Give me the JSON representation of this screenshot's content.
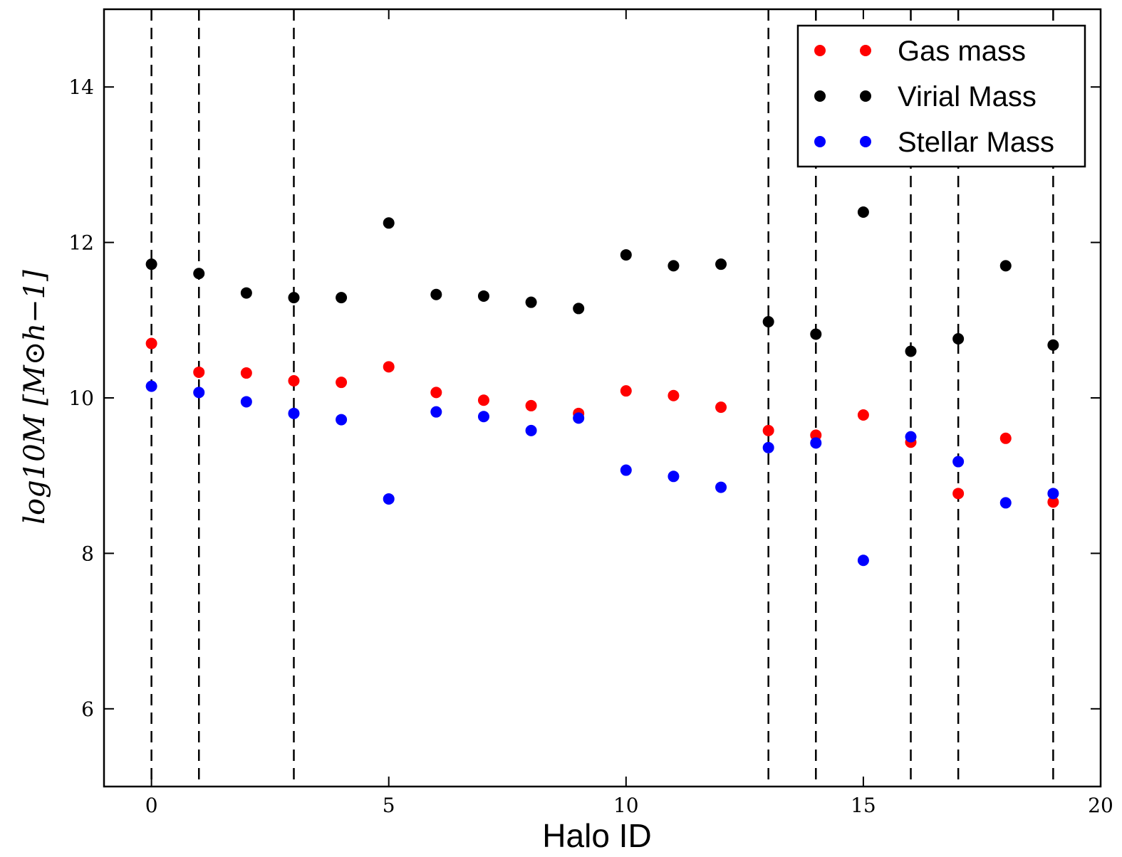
{
  "chart_data": {
    "type": "scatter",
    "title": "",
    "xlabel": "Halo ID",
    "ylabel": "log10M [M⊙h−1]",
    "xlim": [
      -1,
      20
    ],
    "ylim": [
      5,
      15
    ],
    "xticks": [
      0,
      5,
      10,
      15,
      20
    ],
    "yticks": [
      6,
      8,
      10,
      12,
      14
    ],
    "legend_position": "top-right",
    "vlines": [
      0,
      1,
      3,
      13,
      14,
      16,
      17,
      19
    ],
    "series": [
      {
        "name": "Gas mass",
        "color": "#ff0000",
        "x": [
          0,
          1,
          2,
          3,
          4,
          5,
          6,
          7,
          8,
          9,
          10,
          11,
          12,
          13,
          14,
          15,
          16,
          17,
          18,
          19
        ],
        "y": [
          10.7,
          10.33,
          10.32,
          10.22,
          10.2,
          10.4,
          10.07,
          9.97,
          9.9,
          9.8,
          10.09,
          10.03,
          9.88,
          9.58,
          9.52,
          9.78,
          9.43,
          8.77,
          9.48,
          8.66
        ]
      },
      {
        "name": "Virial Mass",
        "color": "#000000",
        "x": [
          0,
          1,
          2,
          3,
          4,
          5,
          6,
          7,
          8,
          9,
          10,
          11,
          12,
          13,
          14,
          15,
          16,
          17,
          18,
          19
        ],
        "y": [
          11.72,
          11.6,
          11.35,
          11.29,
          11.29,
          12.25,
          11.33,
          11.31,
          11.23,
          11.15,
          11.84,
          11.7,
          11.72,
          10.98,
          10.82,
          12.39,
          10.6,
          10.76,
          11.7,
          10.68
        ]
      },
      {
        "name": "Stellar Mass",
        "color": "#0000ff",
        "x": [
          0,
          1,
          2,
          3,
          4,
          5,
          6,
          7,
          8,
          9,
          10,
          11,
          12,
          13,
          14,
          15,
          16,
          17,
          18,
          19
        ],
        "y": [
          10.15,
          10.07,
          9.95,
          9.8,
          9.72,
          8.7,
          9.82,
          9.76,
          9.58,
          9.74,
          9.07,
          8.99,
          8.85,
          9.36,
          9.42,
          7.91,
          9.5,
          9.18,
          8.65,
          8.77
        ]
      }
    ]
  }
}
